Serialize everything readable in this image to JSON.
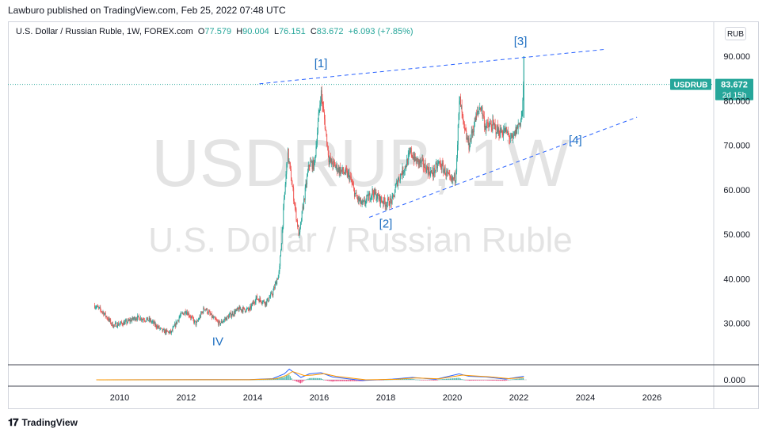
{
  "publisher_line": "Lawburo published on TradingView.com, Feb 25, 2022 07:48 UTC",
  "legend": {
    "symbol": "U.S. Dollar / Russian Ruble, 1W, FOREX.com",
    "o_key": "O",
    "o_val": "77.579",
    "h_key": "H",
    "h_val": "90.004",
    "l_key": "L",
    "l_val": "76.151",
    "c_key": "C",
    "c_val": "83.672",
    "change": "+6.093 (+7.85%)"
  },
  "currency_button": "RUB",
  "watermark": {
    "line1": "USDRUB, 1W",
    "line2": "U.S. Dollar / Russian Ruble"
  },
  "price_badge": {
    "symbol": "USDRUB",
    "price": "83.672",
    "countdown": "2d 15h"
  },
  "footer": "TradingView",
  "colors": {
    "up": "#26a69a",
    "down": "#ef5350",
    "annotation": "#2962ff",
    "wave_label": "#1e6fc2",
    "text": "#131722",
    "axis_border": "#d1d4dc"
  },
  "chart_data": {
    "type": "candlestick",
    "symbol": "USDRUB",
    "interval": "1W",
    "ylim": [
      20,
      95
    ],
    "xlim": [
      2009.35,
      2027.6
    ],
    "y_ticks": [
      "90.000",
      "80.000",
      "70.000",
      "60.000",
      "50.000",
      "40.000",
      "30.000"
    ],
    "y_tick_values": [
      90,
      80,
      70,
      60,
      50,
      40,
      30
    ],
    "x_ticks": [
      "2010",
      "2012",
      "2014",
      "2016",
      "2018",
      "2020",
      "2022",
      "2024",
      "2026"
    ],
    "x_tick_values": [
      2010,
      2012,
      2014,
      2016,
      2018,
      2020,
      2022,
      2024,
      2026
    ],
    "last_close": 83.672,
    "price_path": [
      [
        2009.25,
        34.0
      ],
      [
        2009.5,
        32.5
      ],
      [
        2009.8,
        29.5
      ],
      [
        2010.2,
        30.2
      ],
      [
        2010.5,
        31.3
      ],
      [
        2010.9,
        30.7
      ],
      [
        2011.3,
        28.2
      ],
      [
        2011.55,
        27.9
      ],
      [
        2011.8,
        31.5
      ],
      [
        2012.0,
        32.8
      ],
      [
        2012.3,
        29.8
      ],
      [
        2012.55,
        33.5
      ],
      [
        2012.8,
        31.2
      ],
      [
        2013.0,
        29.9
      ],
      [
        2013.3,
        31.7
      ],
      [
        2013.6,
        33.2
      ],
      [
        2013.9,
        33.0
      ],
      [
        2014.1,
        35.7
      ],
      [
        2014.4,
        34.6
      ],
      [
        2014.6,
        36.8
      ],
      [
        2014.8,
        41.5
      ],
      [
        2014.95,
        58.0
      ],
      [
        2015.05,
        68.5
      ],
      [
        2015.3,
        54.5
      ],
      [
        2015.4,
        49.5
      ],
      [
        2015.5,
        55.5
      ],
      [
        2015.7,
        66.0
      ],
      [
        2015.85,
        65.5
      ],
      [
        2016.05,
        82.0
      ],
      [
        2016.15,
        76.0
      ],
      [
        2016.3,
        66.5
      ],
      [
        2016.6,
        64.5
      ],
      [
        2016.9,
        63.2
      ],
      [
        2017.1,
        58.5
      ],
      [
        2017.3,
        56.5
      ],
      [
        2017.6,
        59.5
      ],
      [
        2017.8,
        58.0
      ],
      [
        2018.0,
        57.0
      ],
      [
        2018.2,
        57.5
      ],
      [
        2018.35,
        62.0
      ],
      [
        2018.6,
        65.5
      ],
      [
        2018.75,
        68.5
      ],
      [
        2018.9,
        66.5
      ],
      [
        2019.1,
        65.8
      ],
      [
        2019.4,
        63.5
      ],
      [
        2019.6,
        66.0
      ],
      [
        2019.8,
        64.0
      ],
      [
        2019.95,
        61.7
      ],
      [
        2020.1,
        63.0
      ],
      [
        2020.22,
        80.5
      ],
      [
        2020.35,
        73.5
      ],
      [
        2020.5,
        70.0
      ],
      [
        2020.7,
        76.0
      ],
      [
        2020.85,
        79.0
      ],
      [
        2021.0,
        74.0
      ],
      [
        2021.2,
        74.5
      ],
      [
        2021.4,
        73.0
      ],
      [
        2021.6,
        73.2
      ],
      [
        2021.8,
        71.0
      ],
      [
        2021.95,
        74.0
      ],
      [
        2022.05,
        75.5
      ],
      [
        2022.1,
        77.5
      ],
      [
        2022.15,
        83.672
      ]
    ],
    "annotations": [
      {
        "label": "[1]",
        "x": 2016.05,
        "y": 87.5
      },
      {
        "label": "[2]",
        "x": 2018.0,
        "y": 51.5
      },
      {
        "label": "[3]",
        "x": 2022.05,
        "y": 92.5
      },
      {
        "label": "[4]",
        "x": 2023.7,
        "y": 70.3
      },
      {
        "label": "IV",
        "x": 2012.95,
        "y": 25.0
      }
    ],
    "trendlines": [
      {
        "from": [
          2014.2,
          83.8
        ],
        "to": [
          2024.55,
          91.5
        ]
      },
      {
        "from": [
          2017.5,
          53.8
        ],
        "to": [
          2025.55,
          76.3
        ]
      }
    ],
    "oscillator": {
      "baseline": 0,
      "y_tick": "0.000",
      "line1": [
        [
          2009.3,
          0
        ],
        [
          2013.9,
          0.1
        ],
        [
          2014.6,
          0.5
        ],
        [
          2014.95,
          2.5
        ],
        [
          2015.1,
          4.5
        ],
        [
          2015.45,
          1.0
        ],
        [
          2015.7,
          2.5
        ],
        [
          2016.05,
          3.0
        ],
        [
          2016.4,
          1.2
        ],
        [
          2017.3,
          -0.3
        ],
        [
          2018.2,
          0.3
        ],
        [
          2018.8,
          1.0
        ],
        [
          2019.5,
          0.2
        ],
        [
          2020.2,
          2.5
        ],
        [
          2020.5,
          1.5
        ],
        [
          2021.0,
          1.2
        ],
        [
          2021.6,
          0.3
        ],
        [
          2022.15,
          1.5
        ]
      ],
      "line2": [
        [
          2009.3,
          0
        ],
        [
          2013.9,
          0.05
        ],
        [
          2014.7,
          0.4
        ],
        [
          2015.0,
          1.8
        ],
        [
          2015.2,
          3.5
        ],
        [
          2015.55,
          1.8
        ],
        [
          2015.8,
          2.0
        ],
        [
          2016.15,
          2.6
        ],
        [
          2016.5,
          1.5
        ],
        [
          2017.4,
          0
        ],
        [
          2018.3,
          0.2
        ],
        [
          2018.9,
          0.8
        ],
        [
          2019.6,
          0.4
        ],
        [
          2020.3,
          2.0
        ],
        [
          2020.6,
          1.7
        ],
        [
          2021.1,
          1.3
        ],
        [
          2021.7,
          0.5
        ],
        [
          2022.15,
          0.9
        ]
      ]
    }
  }
}
